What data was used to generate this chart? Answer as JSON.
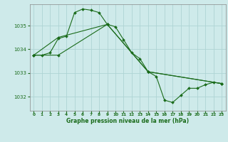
{
  "title": "Graphe pression niveau de la mer (hPa)",
  "bg_color": "#ceeaea",
  "grid_color": "#aed4d4",
  "line_color": "#1a6b1a",
  "xlim": [
    -0.5,
    23.5
  ],
  "ylim": [
    1031.4,
    1035.9
  ],
  "yticks": [
    1032,
    1033,
    1034,
    1035
  ],
  "xticks": [
    0,
    1,
    2,
    3,
    4,
    5,
    6,
    7,
    8,
    9,
    10,
    11,
    12,
    13,
    14,
    15,
    16,
    17,
    18,
    19,
    20,
    21,
    22,
    23
  ],
  "series1_x": [
    0,
    1,
    2,
    3,
    4,
    5,
    6,
    7,
    8,
    9,
    10,
    11,
    12,
    13,
    14,
    15,
    16,
    17,
    18,
    19,
    20,
    21,
    22,
    23
  ],
  "series1_y": [
    1033.75,
    1033.75,
    1033.85,
    1034.45,
    1034.55,
    1035.55,
    1035.7,
    1035.65,
    1035.55,
    1035.05,
    1034.95,
    1034.4,
    1033.85,
    1033.6,
    1033.05,
    1032.85,
    1031.85,
    1031.75,
    1032.05,
    1032.35,
    1032.35,
    1032.5,
    1032.6,
    1032.55
  ],
  "series2_x": [
    0,
    3,
    9,
    14,
    23
  ],
  "series2_y": [
    1033.75,
    1034.5,
    1035.05,
    1033.05,
    1032.55
  ],
  "series3_x": [
    0,
    3,
    9,
    14,
    23
  ],
  "series3_y": [
    1033.75,
    1033.75,
    1035.05,
    1033.05,
    1032.55
  ]
}
